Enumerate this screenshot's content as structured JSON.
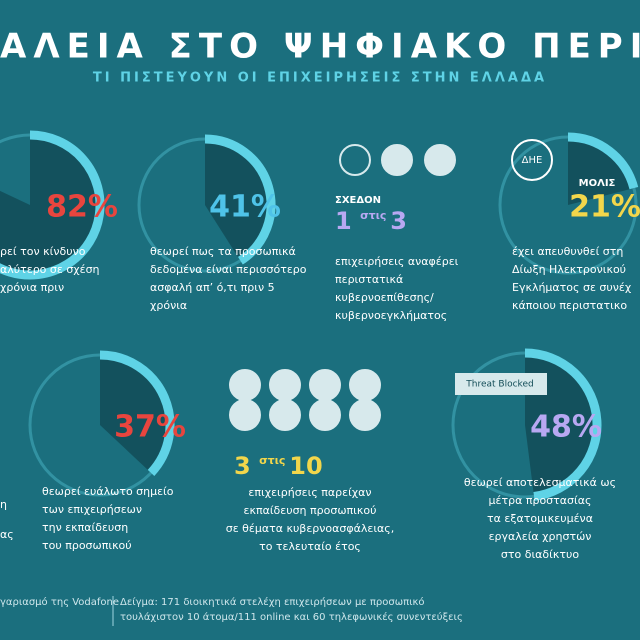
{
  "title": "ΑΛΕΙΑ ΣΤΟ ΨΗΦΙΑΚΟ ΠΕΡΙΒΑΛΛ",
  "subtitle": "ΤΙ ΠΙΣΤΕΥΟΥΝ ΟΙ ΕΠΙΧΕΙΡΗΣΕΙΣ ΣΤΗΝ ΕΛΛΑΔΑ",
  "stats": [
    {
      "value": 82,
      "label": "82%",
      "color": "#e8453e",
      "text": [
        "ρεί τον κίνδυνο",
        "αλύτερο σε σχέση",
        "χρόνια πριν"
      ]
    },
    {
      "value": 41,
      "label": "41%",
      "color": "#4fc3e8",
      "text": [
        "θεωρεί πως τα προσωπικά",
        "δεδομένα είναι περισσότερο",
        "ασφαλή απ’ ό,τι πριν 5",
        "χρόνια"
      ]
    },
    {
      "value": 21,
      "label": "21%",
      "color": "#f2d64b",
      "prefix": "ΜΟΛΙΣ",
      "icon": "ΔΗΕ",
      "text": [
        "έχει απευθυνθεί στη",
        "Δίωξη Ηλεκτρονικού",
        "Εγκλήματος σε συνέχ",
        "κάποιου περιστατικο"
      ]
    },
    {
      "value": 37,
      "label": "37%",
      "color": "#e8453e",
      "text": [
        "θεωρεί ευάλωτο σημείο",
        "των επιχειρήσεων",
        "την εκπαίδευση",
        "του προσωπικού"
      ]
    },
    {
      "value": 48,
      "label": "48%",
      "color": "#b8a8f2",
      "icon": "Threat Blocked",
      "text": [
        "θεωρεί αποτελεσματικά ως",
        "μέτρα προστασίας",
        "τα εξατομικευμένα",
        "εργαλεία χρηστών",
        "στο διαδίκτυο"
      ]
    }
  ],
  "fractions": [
    {
      "prefix": "ΣΧΕΔΟΝ",
      "numerator": "1",
      "word": "στις",
      "denominator": "3",
      "color": "#b8a8f2",
      "text": [
        "επιχειρήσεις αναφέρει",
        "περιστατικά",
        "κυβερνοεπίθεσης/",
        "κυβερνοεγκλήματος"
      ]
    },
    {
      "numerator": "3",
      "word": "στις",
      "denominator": "10",
      "color": "#f2d64b",
      "text": [
        "επιχειρήσεις παρείχαν",
        "εκπαίδευση προσωπικού",
        "σε θέματα κυβερνοασφάλειας,",
        "το τελευταίο έτος"
      ]
    }
  ],
  "left_fragments": [
    "η",
    "ας"
  ],
  "footer": {
    "left": "γαριασμό της Vodafone",
    "right": [
      "Δείγμα: 171 διοικητικά στελέχη επιχειρήσεων με προσωπικό",
      "τουλάχιστον 10 άτομα/111 online και 60 τηλεφωνικές συνεντεύξεις"
    ]
  }
}
